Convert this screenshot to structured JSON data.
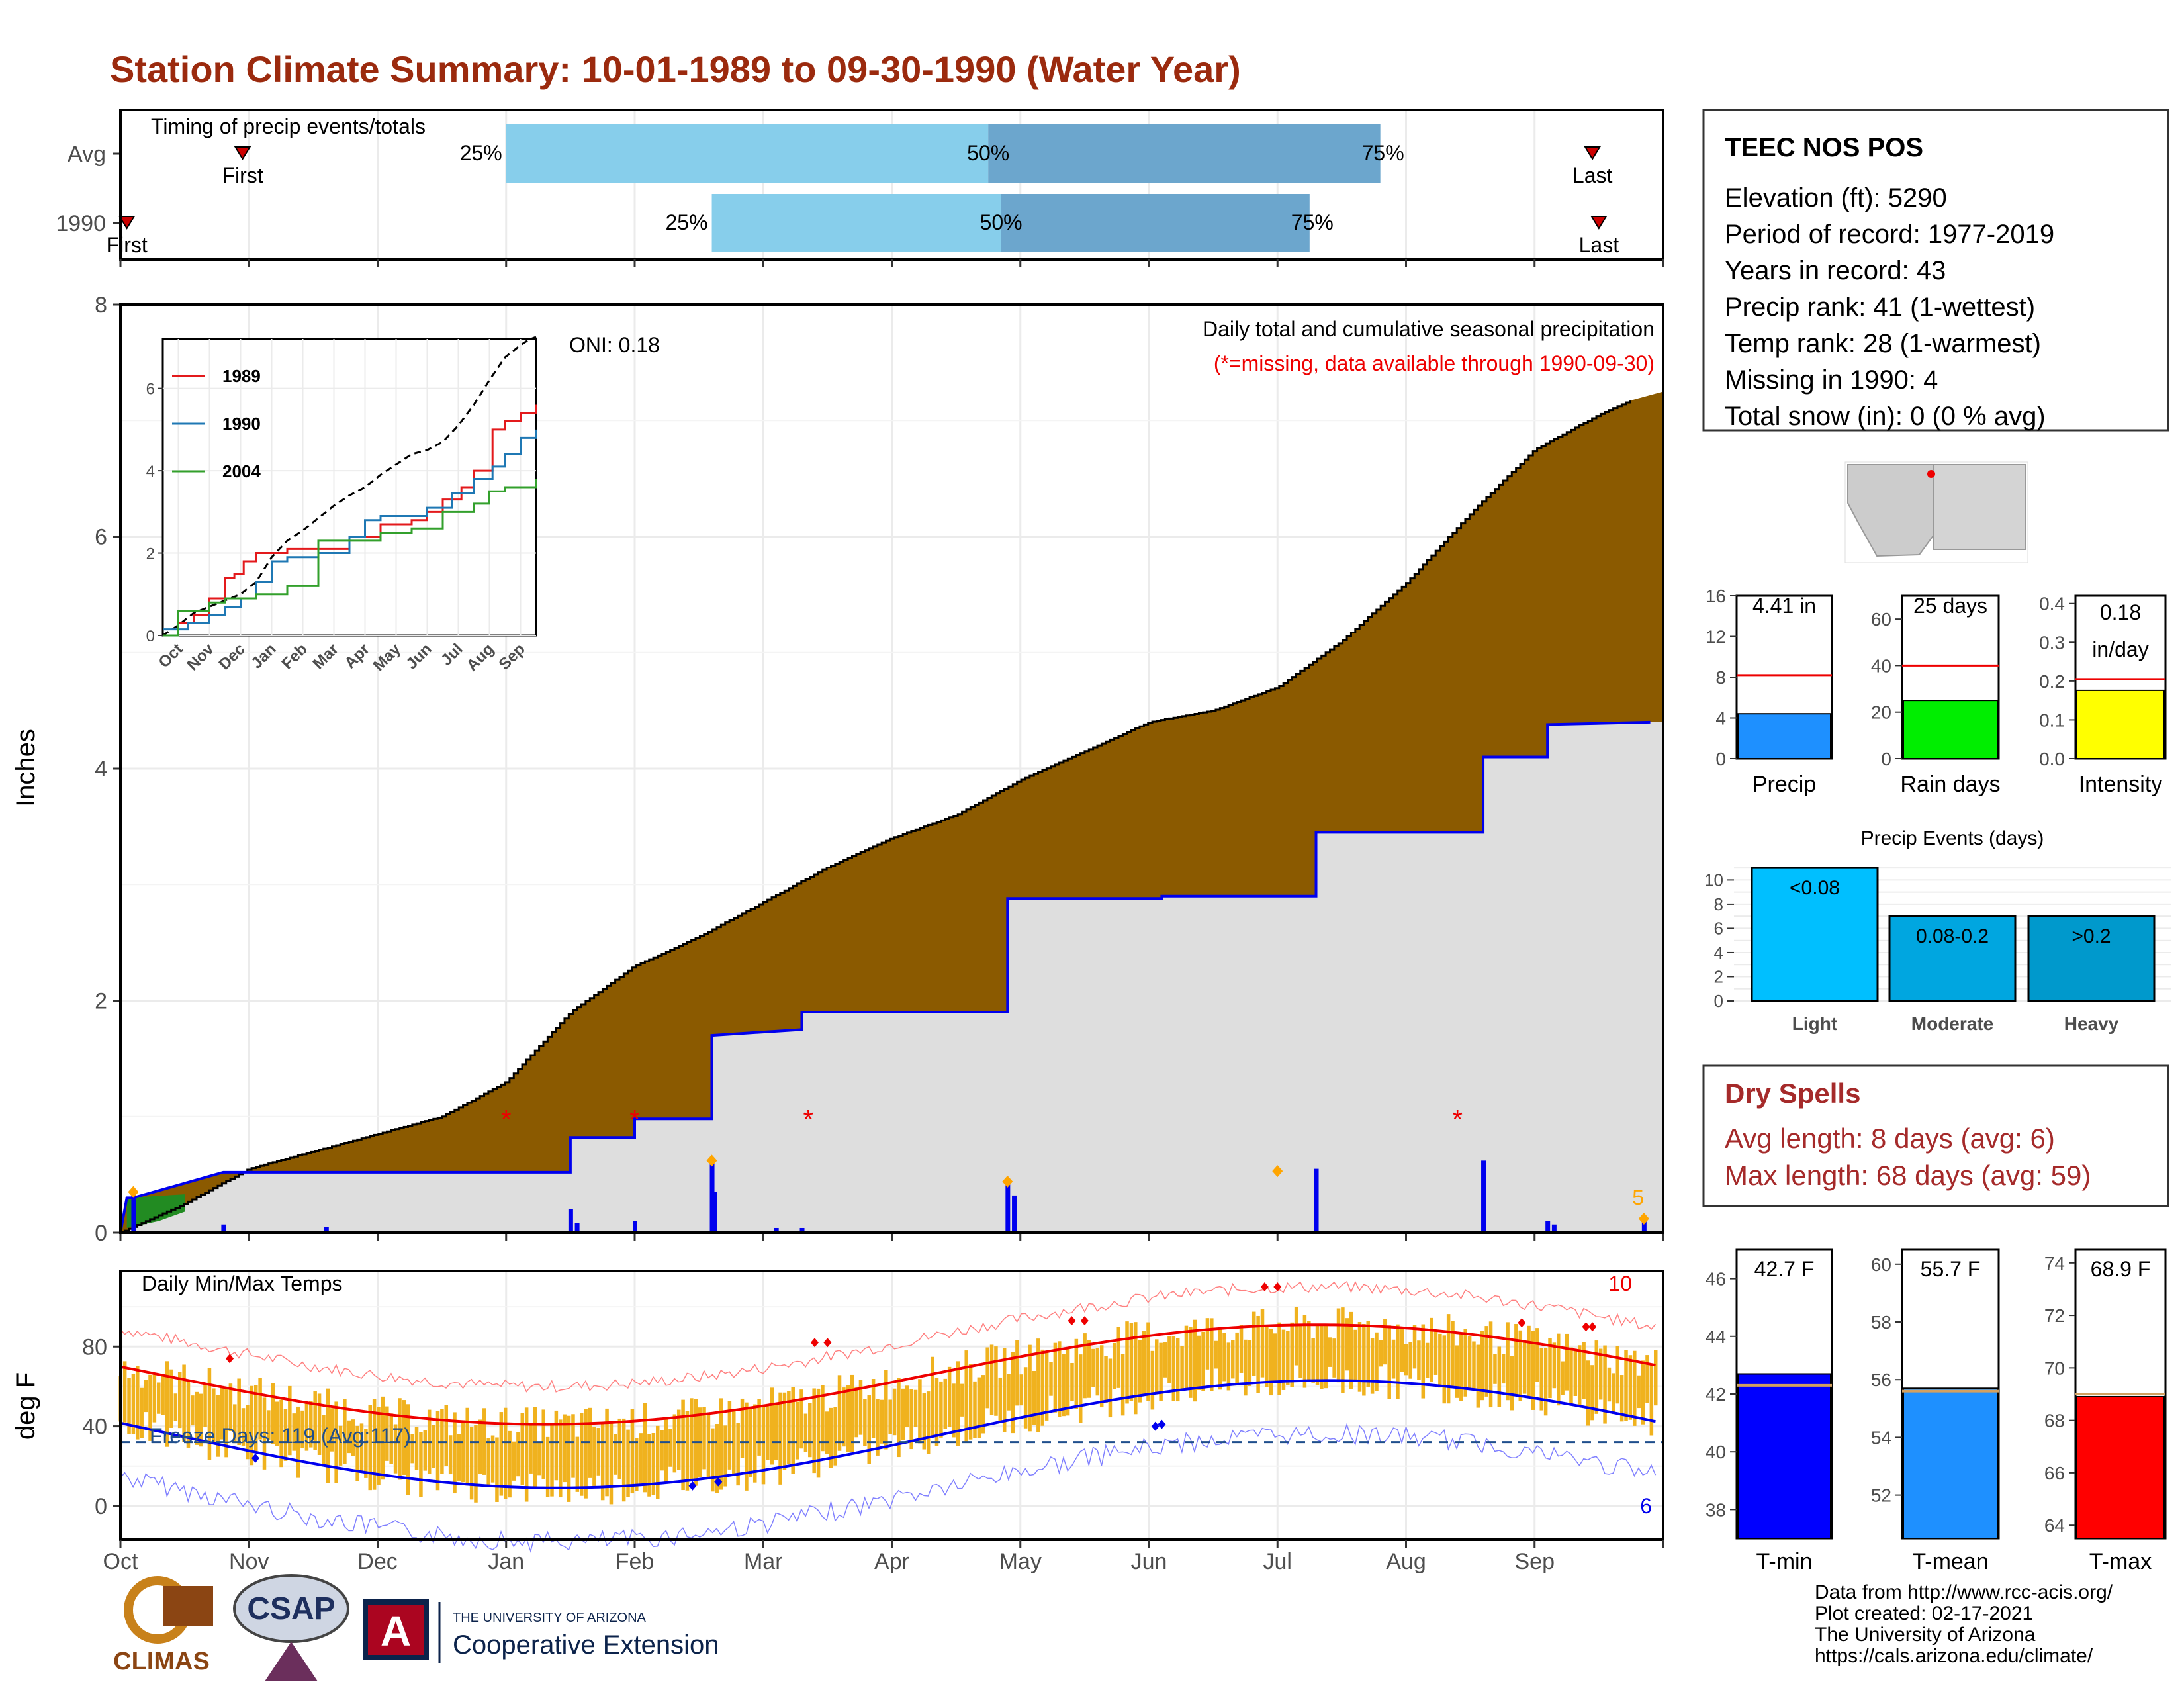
{
  "title": "Station Climate Summary: 10-01-1989 to 09-30-1990 (Water Year)",
  "timing": {
    "label": "Timing of precip events/totals",
    "rows": [
      {
        "name": "Avg",
        "first_label": "First",
        "last_label": "Last",
        "first_month": 0.95,
        "p25": 3.0,
        "p50": 6.75,
        "p75": 9.8,
        "last_month": 11.45
      },
      {
        "name": "1990",
        "first_label": "First",
        "last_label": "Last",
        "first_month": 0.05,
        "p25": 4.6,
        "p50": 6.85,
        "p75": 9.25,
        "last_month": 11.5
      }
    ],
    "pct_labels": [
      "25%",
      "50%",
      "75%"
    ]
  },
  "months": [
    "Oct",
    "Nov",
    "Dec",
    "Jan",
    "Feb",
    "Mar",
    "Apr",
    "May",
    "Jun",
    "Jul",
    "Aug",
    "Sep"
  ],
  "precip_panel": {
    "ylabel": "Inches",
    "ylim": [
      0,
      8
    ],
    "yticks": [
      "0",
      "2",
      "4",
      "6",
      "8"
    ],
    "heading": "Daily total and cumulative seasonal precipitation",
    "missing_note": "(*=missing, data available through 1990-09-30)",
    "oni": "ONI: 0.18",
    "count_label": "5",
    "inset": {
      "series": [
        {
          "name": "1989",
          "color": "#e31a1c"
        },
        {
          "name": "1990",
          "color": "#1f78b4"
        },
        {
          "name": "2004",
          "color": "#33a02c"
        }
      ],
      "yticks": [
        "0",
        "2",
        "4",
        "6"
      ],
      "xticks": [
        "Oct",
        "Nov",
        "Dec",
        "Jan",
        "Feb",
        "Mar",
        "Apr",
        "May",
        "Jun",
        "Jul",
        "Aug",
        "Sep"
      ]
    }
  },
  "temp_panel": {
    "ylabel": "deg F",
    "label": "Daily Min/Max Temps",
    "yticks": [
      "0",
      "40",
      "80"
    ],
    "freeze": "Freeze Days: 119 (Avg:117)",
    "max_count": "10",
    "min_count": "6"
  },
  "station": {
    "name": "TEEC NOS POS",
    "lines": [
      "Elevation (ft): 5290",
      "Period of record: 1977-2019",
      "Years in record: 43",
      "Precip rank: 41 (1-wettest)",
      "Temp rank: 28 (1-warmest)",
      "Missing in 1990: 4",
      "Total snow (in): 0 (0 % avg)"
    ]
  },
  "mini_bars": [
    {
      "label": "Precip",
      "value_text": "4.41 in",
      "yticks": [
        "0",
        "4",
        "8",
        "12",
        "16"
      ],
      "ymax": 16,
      "value": 4.41,
      "avg": 8.2,
      "color": "#1e90ff"
    },
    {
      "label": "Rain days",
      "value_text": "25 days",
      "yticks": [
        "0",
        "20",
        "40",
        "60"
      ],
      "ymax": 70,
      "value": 25,
      "avg": 40,
      "color": "#00ee00"
    },
    {
      "label": "Intensity",
      "value_text_1": "0.18",
      "value_text_2": "in/day",
      "yticks": [
        "0.0",
        "0.1",
        "0.2",
        "0.3",
        "0.4"
      ],
      "ymax": 0.42,
      "value": 0.176,
      "avg": 0.205,
      "color": "#ffff00"
    }
  ],
  "events": {
    "title": "Precip Events (days)",
    "yticks": [
      "0",
      "2",
      "4",
      "6",
      "8",
      "10"
    ],
    "categories": [
      "Light",
      "Moderate",
      "Heavy"
    ],
    "bar_labels": [
      "<0.08",
      "0.08-0.2",
      ">0.2"
    ],
    "values": [
      11,
      7,
      7
    ],
    "colors": [
      "#00bfff",
      "#00a6e0",
      "#0099cc"
    ]
  },
  "dry_spells": {
    "title": "Dry Spells",
    "avg": "Avg length: 8 days (avg: 6)",
    "max": "Max length: 68 days (avg: 59)"
  },
  "temp_bars": [
    {
      "label": "T-min",
      "value_text": "42.7 F",
      "yticks": [
        "38",
        "40",
        "42",
        "44",
        "46"
      ],
      "ymin": 37,
      "ymax": 47,
      "value": 42.7,
      "avg": 42.3,
      "color": "#0000ff"
    },
    {
      "label": "T-mean",
      "value_text": "55.7 F",
      "yticks": [
        "52",
        "54",
        "56",
        "58",
        "60"
      ],
      "ymin": 50.5,
      "ymax": 60.5,
      "value": 55.7,
      "avg": 55.6,
      "color": "#1e90ff"
    },
    {
      "label": "T-max",
      "value_text": "68.9 F",
      "yticks": [
        "64",
        "66",
        "68",
        "70",
        "72",
        "74"
      ],
      "ymin": 63.5,
      "ymax": 74.5,
      "value": 68.9,
      "avg": 69.0,
      "color": "#ff0000"
    }
  ],
  "logos": {
    "climas": "CLIMAS",
    "csap": "CSAP",
    "ua_small": "THE UNIVERSITY OF ARIZONA",
    "ua_big": "Cooperative Extension"
  },
  "footer": [
    "Data from http://www.rcc-acis.org/",
    "Plot created: 02-17-2021",
    "The University of Arizona",
    "https://cals.arizona.edu/climate/"
  ],
  "chart_data": {
    "type": "area",
    "title": "Daily total and cumulative seasonal precipitation",
    "ylabel": "Inches",
    "ylim": [
      0,
      8
    ],
    "series": [
      {
        "name": "Average cumulative",
        "x_month": [
          0,
          0.5,
          1,
          1.5,
          2,
          2.5,
          3,
          3.5,
          4,
          4.5,
          5,
          5.5,
          6,
          6.5,
          7,
          7.5,
          8,
          8.5,
          9,
          9.5,
          10,
          10.5,
          11,
          11.5,
          11.9
        ],
        "values": [
          0,
          0.25,
          0.55,
          0.7,
          0.85,
          1.0,
          1.3,
          1.9,
          2.3,
          2.55,
          2.85,
          3.15,
          3.4,
          3.6,
          3.9,
          4.15,
          4.4,
          4.5,
          4.7,
          5.1,
          5.6,
          6.2,
          6.75,
          7.05,
          7.25
        ]
      },
      {
        "name": "1990 cumulative",
        "x_month": [
          0,
          0.05,
          0.1,
          0.8,
          3.5,
          3.5,
          4.0,
          4.0,
          4.6,
          4.6,
          5.3,
          5.3,
          6.9,
          6.9,
          8.1,
          8.1,
          9.3,
          9.3,
          10.6,
          10.6,
          11.1,
          11.1,
          11.9
        ],
        "values": [
          0,
          0.3,
          0.3,
          0.52,
          0.52,
          0.82,
          0.82,
          0.98,
          0.98,
          1.7,
          1.75,
          1.9,
          1.9,
          2.88,
          2.88,
          2.9,
          2.9,
          3.45,
          3.45,
          4.1,
          4.1,
          4.38,
          4.4
        ]
      }
    ],
    "daily_bars": [
      [
        0.1,
        0.33
      ],
      [
        0.8,
        0.07
      ],
      [
        3.5,
        0.2
      ],
      [
        3.55,
        0.08
      ],
      [
        4.0,
        0.1
      ],
      [
        4.6,
        0.6
      ],
      [
        4.62,
        0.35
      ],
      [
        6.9,
        0.42
      ],
      [
        6.95,
        0.32
      ],
      [
        9.3,
        0.55
      ],
      [
        10.6,
        0.62
      ],
      [
        11.1,
        0.1
      ],
      [
        11.15,
        0.07
      ],
      [
        11.85,
        0.1
      ],
      [
        1.6,
        0.05
      ],
      [
        5.1,
        0.04
      ],
      [
        5.3,
        0.04
      ]
    ],
    "missing_x": [
      3.0,
      4.0,
      5.35,
      10.4
    ]
  }
}
